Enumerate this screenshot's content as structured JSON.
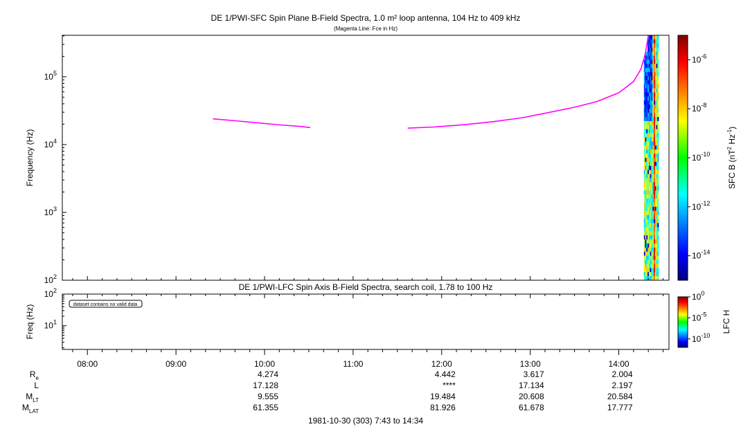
{
  "chart_data": [
    {
      "type": "heatmap",
      "title": "DE 1/PWI-SFC  Spin Plane B-Field Spectra, 1.0 m² loop antenna, 104 Hz to 409 kHz",
      "subtitle": "(Magenta Line: Fce in Hz)",
      "ylabel": "Frequency (Hz)",
      "yscale": "log",
      "ylim": [
        100,
        409000
      ],
      "yticks": [
        {
          "v": 100,
          "e": "2"
        },
        {
          "v": 1000,
          "e": "3"
        },
        {
          "v": 10000,
          "e": "4"
        },
        {
          "v": 100000,
          "e": "5"
        }
      ],
      "xlim": [
        "07:43",
        "14:34"
      ],
      "colorbar": {
        "label": "SFC B (nT",
        "label_sup1": "2",
        "label_mid": " Hz",
        "label_sup2": "-1",
        "label_end": ")",
        "scale": "log",
        "range": [
          1e-15,
          1e-05
        ],
        "ticks": [
          {
            "v": 1e-06,
            "e": "-6"
          },
          {
            "v": 1e-08,
            "e": "-8"
          },
          {
            "v": 1e-10,
            "e": "-10"
          },
          {
            "v": 1e-12,
            "e": "-12"
          },
          {
            "v": 1e-14,
            "e": "-14"
          }
        ]
      },
      "spectrogram_time_range": [
        "14:17",
        "14:27"
      ],
      "series": [
        {
          "name": "Fce",
          "color": "#ff00ff",
          "segments": [
            [
              [
                "09:25",
                24000
              ],
              [
                "09:40",
                22500
              ],
              [
                "09:55",
                21000
              ],
              [
                "10:10",
                19500
              ],
              [
                "10:25",
                18500
              ],
              [
                "10:31",
                17800
              ]
            ],
            [
              [
                "11:37",
                17500
              ],
              [
                "11:55",
                18200
              ],
              [
                "12:15",
                19600
              ],
              [
                "12:35",
                21800
              ],
              [
                "12:55",
                25000
              ],
              [
                "13:10",
                29000
              ],
              [
                "13:30",
                35500
              ],
              [
                "13:45",
                43000
              ],
              [
                "14:00",
                58000
              ],
              [
                "14:10",
                85000
              ],
              [
                "14:15",
                130000
              ],
              [
                "14:18",
                220000
              ],
              [
                "14:20",
                409000
              ]
            ]
          ]
        }
      ]
    },
    {
      "type": "heatmap",
      "title": "DE 1/PWI-LFC  Spin Axis B-Field Spectra, search coil, 1.78 to 100 Hz",
      "ylabel": "Freq (Hz)",
      "yscale": "log",
      "ylim": [
        1.78,
        100
      ],
      "yticks": [
        {
          "v": 10,
          "e": "1"
        },
        {
          "v": 100,
          "e": "2"
        }
      ],
      "annotation": "dataset contains no valid data",
      "colorbar": {
        "label": "LFC H",
        "scale": "log",
        "range": [
          1e-12,
          1
        ],
        "ticks": [
          {
            "v": 1,
            "e": "0"
          },
          {
            "v": 1e-05,
            "e": "-5"
          },
          {
            "v": 1e-10,
            "e": "-10"
          }
        ]
      }
    }
  ],
  "xaxis": {
    "ticks": [
      "08:00",
      "09:00",
      "10:00",
      "11:00",
      "12:00",
      "13:00",
      "14:00"
    ],
    "footer": "1981-10-30 (303) 7:43 to 14:34"
  },
  "ephemeris": {
    "rows": [
      {
        "label": "R",
        "sub": "e",
        "values": {
          "10:00": "4.274",
          "12:00": "4.442",
          "13:00": "3.617",
          "14:00": "2.004"
        }
      },
      {
        "label": "L",
        "sub": "",
        "values": {
          "10:00": "17.128",
          "12:00": "****",
          "13:00": "17.134",
          "14:00": "2.197"
        }
      },
      {
        "label": "M",
        "sub": "LT",
        "values": {
          "10:00": "9.555",
          "12:00": "19.484",
          "13:00": "20.608",
          "14:00": "20.584"
        }
      },
      {
        "label": "M",
        "sub": "LAT",
        "values": {
          "10:00": "61.355",
          "12:00": "81.926",
          "13:00": "61.678",
          "14:00": "17.777"
        }
      }
    ]
  }
}
